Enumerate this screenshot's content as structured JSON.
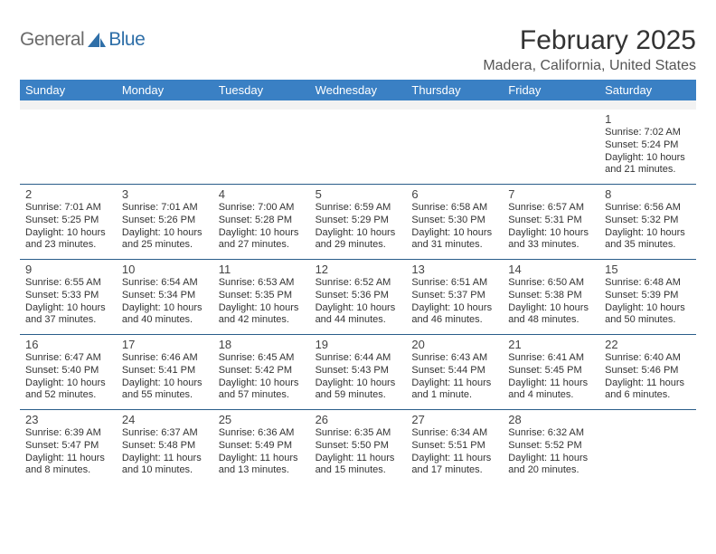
{
  "brand": {
    "general": "General",
    "blue": "Blue"
  },
  "title": "February 2025",
  "subtitle": "Madera, California, United States",
  "colors": {
    "header_bg": "#3a80c4",
    "header_text": "#ffffff",
    "rule": "#2a5d8a",
    "spacer": "#f2f2f2",
    "logo_gray": "#6b6b6b",
    "logo_blue": "#2f6fa8"
  },
  "day_headers": [
    "Sunday",
    "Monday",
    "Tuesday",
    "Wednesday",
    "Thursday",
    "Friday",
    "Saturday"
  ],
  "weeks": [
    [
      null,
      null,
      null,
      null,
      null,
      null,
      {
        "n": "1",
        "sunrise": "Sunrise: 7:02 AM",
        "sunset": "Sunset: 5:24 PM",
        "day1": "Daylight: 10 hours",
        "day2": "and 21 minutes."
      }
    ],
    [
      {
        "n": "2",
        "sunrise": "Sunrise: 7:01 AM",
        "sunset": "Sunset: 5:25 PM",
        "day1": "Daylight: 10 hours",
        "day2": "and 23 minutes."
      },
      {
        "n": "3",
        "sunrise": "Sunrise: 7:01 AM",
        "sunset": "Sunset: 5:26 PM",
        "day1": "Daylight: 10 hours",
        "day2": "and 25 minutes."
      },
      {
        "n": "4",
        "sunrise": "Sunrise: 7:00 AM",
        "sunset": "Sunset: 5:28 PM",
        "day1": "Daylight: 10 hours",
        "day2": "and 27 minutes."
      },
      {
        "n": "5",
        "sunrise": "Sunrise: 6:59 AM",
        "sunset": "Sunset: 5:29 PM",
        "day1": "Daylight: 10 hours",
        "day2": "and 29 minutes."
      },
      {
        "n": "6",
        "sunrise": "Sunrise: 6:58 AM",
        "sunset": "Sunset: 5:30 PM",
        "day1": "Daylight: 10 hours",
        "day2": "and 31 minutes."
      },
      {
        "n": "7",
        "sunrise": "Sunrise: 6:57 AM",
        "sunset": "Sunset: 5:31 PM",
        "day1": "Daylight: 10 hours",
        "day2": "and 33 minutes."
      },
      {
        "n": "8",
        "sunrise": "Sunrise: 6:56 AM",
        "sunset": "Sunset: 5:32 PM",
        "day1": "Daylight: 10 hours",
        "day2": "and 35 minutes."
      }
    ],
    [
      {
        "n": "9",
        "sunrise": "Sunrise: 6:55 AM",
        "sunset": "Sunset: 5:33 PM",
        "day1": "Daylight: 10 hours",
        "day2": "and 37 minutes."
      },
      {
        "n": "10",
        "sunrise": "Sunrise: 6:54 AM",
        "sunset": "Sunset: 5:34 PM",
        "day1": "Daylight: 10 hours",
        "day2": "and 40 minutes."
      },
      {
        "n": "11",
        "sunrise": "Sunrise: 6:53 AM",
        "sunset": "Sunset: 5:35 PM",
        "day1": "Daylight: 10 hours",
        "day2": "and 42 minutes."
      },
      {
        "n": "12",
        "sunrise": "Sunrise: 6:52 AM",
        "sunset": "Sunset: 5:36 PM",
        "day1": "Daylight: 10 hours",
        "day2": "and 44 minutes."
      },
      {
        "n": "13",
        "sunrise": "Sunrise: 6:51 AM",
        "sunset": "Sunset: 5:37 PM",
        "day1": "Daylight: 10 hours",
        "day2": "and 46 minutes."
      },
      {
        "n": "14",
        "sunrise": "Sunrise: 6:50 AM",
        "sunset": "Sunset: 5:38 PM",
        "day1": "Daylight: 10 hours",
        "day2": "and 48 minutes."
      },
      {
        "n": "15",
        "sunrise": "Sunrise: 6:48 AM",
        "sunset": "Sunset: 5:39 PM",
        "day1": "Daylight: 10 hours",
        "day2": "and 50 minutes."
      }
    ],
    [
      {
        "n": "16",
        "sunrise": "Sunrise: 6:47 AM",
        "sunset": "Sunset: 5:40 PM",
        "day1": "Daylight: 10 hours",
        "day2": "and 52 minutes."
      },
      {
        "n": "17",
        "sunrise": "Sunrise: 6:46 AM",
        "sunset": "Sunset: 5:41 PM",
        "day1": "Daylight: 10 hours",
        "day2": "and 55 minutes."
      },
      {
        "n": "18",
        "sunrise": "Sunrise: 6:45 AM",
        "sunset": "Sunset: 5:42 PM",
        "day1": "Daylight: 10 hours",
        "day2": "and 57 minutes."
      },
      {
        "n": "19",
        "sunrise": "Sunrise: 6:44 AM",
        "sunset": "Sunset: 5:43 PM",
        "day1": "Daylight: 10 hours",
        "day2": "and 59 minutes."
      },
      {
        "n": "20",
        "sunrise": "Sunrise: 6:43 AM",
        "sunset": "Sunset: 5:44 PM",
        "day1": "Daylight: 11 hours",
        "day2": "and 1 minute."
      },
      {
        "n": "21",
        "sunrise": "Sunrise: 6:41 AM",
        "sunset": "Sunset: 5:45 PM",
        "day1": "Daylight: 11 hours",
        "day2": "and 4 minutes."
      },
      {
        "n": "22",
        "sunrise": "Sunrise: 6:40 AM",
        "sunset": "Sunset: 5:46 PM",
        "day1": "Daylight: 11 hours",
        "day2": "and 6 minutes."
      }
    ],
    [
      {
        "n": "23",
        "sunrise": "Sunrise: 6:39 AM",
        "sunset": "Sunset: 5:47 PM",
        "day1": "Daylight: 11 hours",
        "day2": "and 8 minutes."
      },
      {
        "n": "24",
        "sunrise": "Sunrise: 6:37 AM",
        "sunset": "Sunset: 5:48 PM",
        "day1": "Daylight: 11 hours",
        "day2": "and 10 minutes."
      },
      {
        "n": "25",
        "sunrise": "Sunrise: 6:36 AM",
        "sunset": "Sunset: 5:49 PM",
        "day1": "Daylight: 11 hours",
        "day2": "and 13 minutes."
      },
      {
        "n": "26",
        "sunrise": "Sunrise: 6:35 AM",
        "sunset": "Sunset: 5:50 PM",
        "day1": "Daylight: 11 hours",
        "day2": "and 15 minutes."
      },
      {
        "n": "27",
        "sunrise": "Sunrise: 6:34 AM",
        "sunset": "Sunset: 5:51 PM",
        "day1": "Daylight: 11 hours",
        "day2": "and 17 minutes."
      },
      {
        "n": "28",
        "sunrise": "Sunrise: 6:32 AM",
        "sunset": "Sunset: 5:52 PM",
        "day1": "Daylight: 11 hours",
        "day2": "and 20 minutes."
      },
      null
    ]
  ]
}
